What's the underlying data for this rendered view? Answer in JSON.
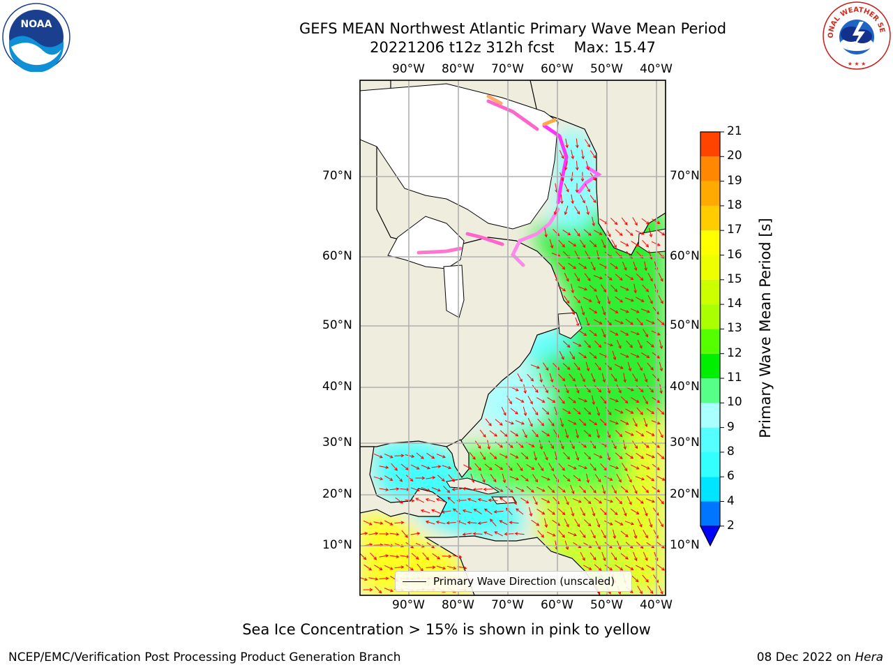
{
  "header": {
    "title": "GEFS MEAN Northwest Atlantic Primary Wave Mean Period",
    "run": "20221206 t12z 312h fcst",
    "max_label": "Max: 15.47"
  },
  "map": {
    "lon_labels": [
      "90°W",
      "80°W",
      "70°W",
      "60°W",
      "50°W",
      "40°W"
    ],
    "lat_labels": [
      "70°N",
      "60°N",
      "50°N",
      "40°N",
      "30°N",
      "20°N",
      "10°N"
    ],
    "legend_label": "Primary Wave Direction (unscaled)",
    "colors": {
      "land": "#efedde",
      "ice": "#ffffff",
      "grid": "#b0b0b0",
      "arrows": "#ff0000"
    }
  },
  "colorbar": {
    "label": "Primary Wave Mean Period [s]",
    "ticks": [
      "2",
      "4",
      "6",
      "8",
      "9",
      "10",
      "11",
      "12",
      "13",
      "14",
      "15",
      "16",
      "17",
      "18",
      "19",
      "20",
      "21"
    ],
    "colors": [
      "#0076ff",
      "#00e5ff",
      "#33ffff",
      "#55ffff",
      "#aaffff",
      "#55ff88",
      "#00ee00",
      "#55ff00",
      "#aaff00",
      "#ccff00",
      "#eeff00",
      "#ffff00",
      "#ffcc00",
      "#ffaa00",
      "#ff8800",
      "#ff4400",
      "#ff0000"
    ],
    "underflow_color": "#0000ff"
  },
  "notes": {
    "sea_ice": "Sea Ice Concentration > 15% is shown in pink to yellow",
    "producer": "NCEP/EMC/Verification Post Processing Product Generation Branch",
    "date": "08 Dec 2022",
    "on": "on",
    "host": "Hera"
  },
  "logos": {
    "noaa": "NOAA",
    "nws": "NATIONAL WEATHER SERVICE"
  }
}
